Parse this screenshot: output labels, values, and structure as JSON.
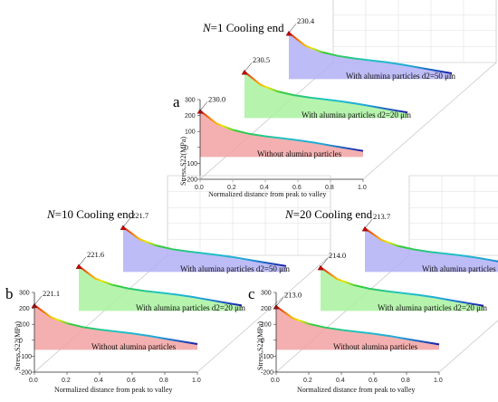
{
  "chart_data": [
    {
      "type": "area",
      "panel_label": "a",
      "title": "N=1 Cooling end",
      "xlabel": "Normalized distance from peak to valley",
      "ylabel": "Stress,S22(MPa)",
      "xlim": [
        0.0,
        1.0
      ],
      "ylim": [
        -200,
        300
      ],
      "x_ticks": [
        "0.0",
        "0.2",
        "0.4",
        "0.6",
        "0.8",
        "1.0"
      ],
      "y_ticks": [
        "300",
        "200",
        "100",
        "0",
        "-100",
        "-200"
      ],
      "x": [
        0.0,
        0.1,
        0.2,
        0.3,
        0.4,
        0.5,
        0.6,
        0.7,
        0.8,
        0.9,
        1.0
      ],
      "series": [
        {
          "name": "Without alumina particles",
          "peak_label": "230.0",
          "fill": "#f2a2a2",
          "values": [
            230.0,
            150,
            110,
            85,
            70,
            58,
            45,
            30,
            12,
            -5,
            -22
          ]
        },
        {
          "name": "With alumina particles d2=20 μm",
          "peak_label": "230.5",
          "fill": "#a9f2a0",
          "values": [
            230.5,
            148,
            108,
            84,
            68,
            56,
            44,
            28,
            10,
            -8,
            -25
          ]
        },
        {
          "name": "With alumina particles d2=50 μm",
          "peak_label": "230.4",
          "fill": "#b3b0f5",
          "values": [
            230.4,
            150,
            110,
            86,
            70,
            58,
            46,
            30,
            12,
            -6,
            -24
          ]
        }
      ]
    },
    {
      "type": "area",
      "panel_label": "b",
      "title": "N=10 Cooling end",
      "xlabel": "Normalized distance from peak to valley",
      "ylabel": "Stress,S22(MPa)",
      "xlim": [
        0.0,
        1.0
      ],
      "ylim": [
        -200,
        300
      ],
      "x_ticks": [
        "0.0",
        "0.2",
        "0.4",
        "0.6",
        "0.8",
        "1.0"
      ],
      "y_ticks": [
        "300",
        "200",
        "100",
        "0",
        "-100",
        "-200"
      ],
      "x": [
        0.0,
        0.1,
        0.2,
        0.3,
        0.4,
        0.5,
        0.6,
        0.7,
        0.8,
        0.9,
        1.0
      ],
      "series": [
        {
          "name": "Without alumina particles",
          "peak_label": "221.1",
          "fill": "#f2a2a2",
          "values": [
            221.1,
            145,
            106,
            82,
            67,
            55,
            43,
            28,
            10,
            -7,
            -24
          ]
        },
        {
          "name": "With alumina particles d2=20 μm",
          "peak_label": "221.6",
          "fill": "#a9f2a0",
          "values": [
            221.6,
            144,
            105,
            81,
            66,
            54,
            42,
            27,
            9,
            -9,
            -26
          ]
        },
        {
          "name": "With alumina particles d2=50 μm",
          "peak_label": "221.7",
          "fill": "#b3b0f5",
          "values": [
            221.7,
            146,
            107,
            83,
            68,
            56,
            44,
            29,
            11,
            -6,
            -23
          ]
        }
      ]
    },
    {
      "type": "area",
      "panel_label": "c",
      "title": "N=20 Cooling end",
      "xlabel": "Normalized distance from peak to valley",
      "ylabel": "Stress,S22(MPa)",
      "xlim": [
        0.0,
        1.0
      ],
      "ylim": [
        -200,
        300
      ],
      "x_ticks": [
        "0.0",
        "0.2",
        "0.4",
        "0.6",
        "0.8",
        "1.0"
      ],
      "y_ticks": [
        "300",
        "200",
        "100",
        "0",
        "-100",
        "-200"
      ],
      "x": [
        0.0,
        0.1,
        0.2,
        0.3,
        0.4,
        0.5,
        0.6,
        0.7,
        0.8,
        0.9,
        1.0
      ],
      "series": [
        {
          "name": "Without alumina particles",
          "peak_label": "213.0",
          "fill": "#f2a2a2",
          "values": [
            213.0,
            140,
            103,
            80,
            65,
            53,
            41,
            26,
            8,
            -9,
            -26
          ]
        },
        {
          "name": "With alumina particles d2=20 μm",
          "peak_label": "214.0",
          "fill": "#a9f2a0",
          "values": [
            214.0,
            141,
            103,
            79,
            64,
            52,
            40,
            25,
            7,
            -11,
            -28
          ]
        },
        {
          "name": "With alumina particles d2=50 μm",
          "peak_label": "213.7",
          "fill": "#b3b0f5",
          "values": [
            213.7,
            142,
            104,
            81,
            66,
            54,
            42,
            27,
            9,
            -8,
            -25
          ]
        }
      ]
    }
  ]
}
